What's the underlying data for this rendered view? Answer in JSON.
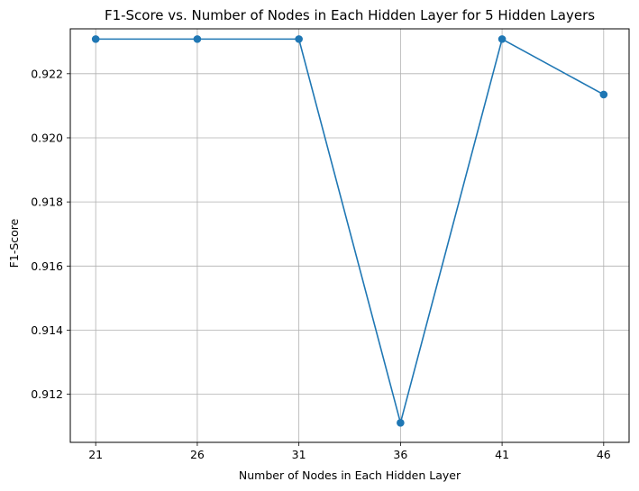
{
  "chart_data": {
    "type": "line",
    "title": "F1-Score vs. Number of Nodes in Each Hidden Layer for 5 Hidden Layers",
    "xlabel": "Number of Nodes in Each Hidden Layer",
    "ylabel": "F1-Score",
    "x": [
      21,
      26,
      31,
      36,
      41,
      46
    ],
    "series": [
      {
        "values": [
          0.92308,
          0.92308,
          0.92308,
          0.91111,
          0.92308,
          0.92135
        ]
      }
    ],
    "xticks": [
      "21",
      "26",
      "31",
      "36",
      "41",
      "46"
    ],
    "yticks": [
      "0.912",
      "0.914",
      "0.916",
      "0.918",
      "0.920",
      "0.922"
    ],
    "ylim": [
      0.9105,
      0.9234
    ],
    "xlim": [
      19.75,
      47.25
    ],
    "grid": true,
    "line_color": "#1f77b4"
  }
}
